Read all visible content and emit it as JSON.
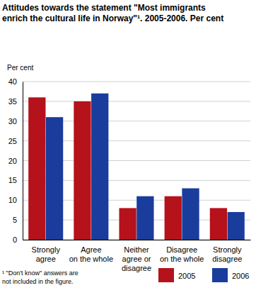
{
  "chart_data": {
    "type": "bar",
    "title": "Attitudes towards the statement \"Most immigrants\nenrich the cultural life in Norway\"¹. 2005-2006. Per cent",
    "y_label": "Per cent",
    "note": "¹ \"Don't know\" answers are\nnot included in the figure.",
    "categories": [
      "Strongly\nagree",
      "Agree\non the whole",
      "Neither\nagree or\ndisagree",
      "Disagree\non the whole",
      "Strongly\ndisagree"
    ],
    "series": [
      {
        "name": "2005",
        "color": "#b5121b",
        "values": [
          36,
          35,
          8,
          11,
          8
        ]
      },
      {
        "name": "2006",
        "color": "#1a3c9c",
        "values": [
          31,
          37,
          11,
          13,
          7
        ]
      }
    ],
    "ylim": [
      0,
      40
    ],
    "yticks": [
      0,
      5,
      10,
      15,
      20,
      25,
      30,
      35,
      40
    ],
    "grid": true,
    "legend": "bottom-right"
  }
}
